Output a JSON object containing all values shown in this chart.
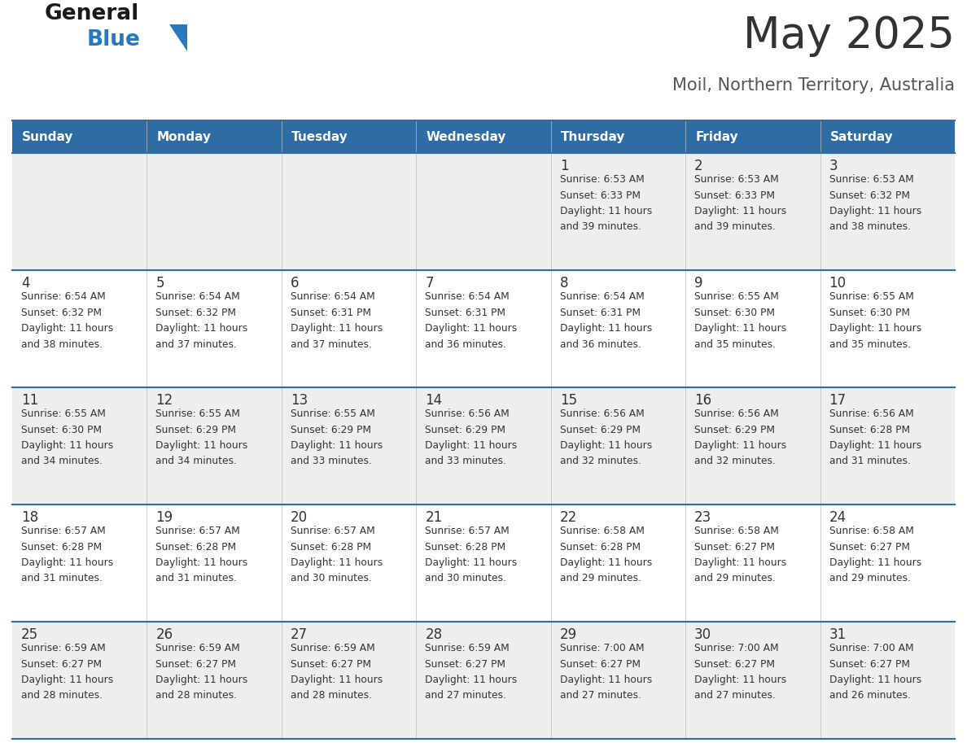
{
  "title": "May 2025",
  "subtitle": "Moil, Northern Territory, Australia",
  "days_of_week": [
    "Sunday",
    "Monday",
    "Tuesday",
    "Wednesday",
    "Thursday",
    "Friday",
    "Saturday"
  ],
  "header_bg": "#2E6DA4",
  "header_text": "#FFFFFF",
  "row_bg_odd": "#EEEEEE",
  "row_bg_even": "#FFFFFF",
  "cell_text": "#333333",
  "border_color": "#2E6DA4",
  "title_color": "#333333",
  "subtitle_color": "#555555",
  "calendar": [
    [
      {
        "day": "",
        "sunrise": "",
        "sunset": "",
        "daylight": ""
      },
      {
        "day": "",
        "sunrise": "",
        "sunset": "",
        "daylight": ""
      },
      {
        "day": "",
        "sunrise": "",
        "sunset": "",
        "daylight": ""
      },
      {
        "day": "",
        "sunrise": "",
        "sunset": "",
        "daylight": ""
      },
      {
        "day": "1",
        "sunrise": "6:53 AM",
        "sunset": "6:33 PM",
        "daylight": "11 hours and 39 minutes."
      },
      {
        "day": "2",
        "sunrise": "6:53 AM",
        "sunset": "6:33 PM",
        "daylight": "11 hours and 39 minutes."
      },
      {
        "day": "3",
        "sunrise": "6:53 AM",
        "sunset": "6:32 PM",
        "daylight": "11 hours and 38 minutes."
      }
    ],
    [
      {
        "day": "4",
        "sunrise": "6:54 AM",
        "sunset": "6:32 PM",
        "daylight": "11 hours and 38 minutes."
      },
      {
        "day": "5",
        "sunrise": "6:54 AM",
        "sunset": "6:32 PM",
        "daylight": "11 hours and 37 minutes."
      },
      {
        "day": "6",
        "sunrise": "6:54 AM",
        "sunset": "6:31 PM",
        "daylight": "11 hours and 37 minutes."
      },
      {
        "day": "7",
        "sunrise": "6:54 AM",
        "sunset": "6:31 PM",
        "daylight": "11 hours and 36 minutes."
      },
      {
        "day": "8",
        "sunrise": "6:54 AM",
        "sunset": "6:31 PM",
        "daylight": "11 hours and 36 minutes."
      },
      {
        "day": "9",
        "sunrise": "6:55 AM",
        "sunset": "6:30 PM",
        "daylight": "11 hours and 35 minutes."
      },
      {
        "day": "10",
        "sunrise": "6:55 AM",
        "sunset": "6:30 PM",
        "daylight": "11 hours and 35 minutes."
      }
    ],
    [
      {
        "day": "11",
        "sunrise": "6:55 AM",
        "sunset": "6:30 PM",
        "daylight": "11 hours and 34 minutes."
      },
      {
        "day": "12",
        "sunrise": "6:55 AM",
        "sunset": "6:29 PM",
        "daylight": "11 hours and 34 minutes."
      },
      {
        "day": "13",
        "sunrise": "6:55 AM",
        "sunset": "6:29 PM",
        "daylight": "11 hours and 33 minutes."
      },
      {
        "day": "14",
        "sunrise": "6:56 AM",
        "sunset": "6:29 PM",
        "daylight": "11 hours and 33 minutes."
      },
      {
        "day": "15",
        "sunrise": "6:56 AM",
        "sunset": "6:29 PM",
        "daylight": "11 hours and 32 minutes."
      },
      {
        "day": "16",
        "sunrise": "6:56 AM",
        "sunset": "6:29 PM",
        "daylight": "11 hours and 32 minutes."
      },
      {
        "day": "17",
        "sunrise": "6:56 AM",
        "sunset": "6:28 PM",
        "daylight": "11 hours and 31 minutes."
      }
    ],
    [
      {
        "day": "18",
        "sunrise": "6:57 AM",
        "sunset": "6:28 PM",
        "daylight": "11 hours and 31 minutes."
      },
      {
        "day": "19",
        "sunrise": "6:57 AM",
        "sunset": "6:28 PM",
        "daylight": "11 hours and 31 minutes."
      },
      {
        "day": "20",
        "sunrise": "6:57 AM",
        "sunset": "6:28 PM",
        "daylight": "11 hours and 30 minutes."
      },
      {
        "day": "21",
        "sunrise": "6:57 AM",
        "sunset": "6:28 PM",
        "daylight": "11 hours and 30 minutes."
      },
      {
        "day": "22",
        "sunrise": "6:58 AM",
        "sunset": "6:28 PM",
        "daylight": "11 hours and 29 minutes."
      },
      {
        "day": "23",
        "sunrise": "6:58 AM",
        "sunset": "6:27 PM",
        "daylight": "11 hours and 29 minutes."
      },
      {
        "day": "24",
        "sunrise": "6:58 AM",
        "sunset": "6:27 PM",
        "daylight": "11 hours and 29 minutes."
      }
    ],
    [
      {
        "day": "25",
        "sunrise": "6:59 AM",
        "sunset": "6:27 PM",
        "daylight": "11 hours and 28 minutes."
      },
      {
        "day": "26",
        "sunrise": "6:59 AM",
        "sunset": "6:27 PM",
        "daylight": "11 hours and 28 minutes."
      },
      {
        "day": "27",
        "sunrise": "6:59 AM",
        "sunset": "6:27 PM",
        "daylight": "11 hours and 28 minutes."
      },
      {
        "day": "28",
        "sunrise": "6:59 AM",
        "sunset": "6:27 PM",
        "daylight": "11 hours and 27 minutes."
      },
      {
        "day": "29",
        "sunrise": "7:00 AM",
        "sunset": "6:27 PM",
        "daylight": "11 hours and 27 minutes."
      },
      {
        "day": "30",
        "sunrise": "7:00 AM",
        "sunset": "6:27 PM",
        "daylight": "11 hours and 27 minutes."
      },
      {
        "day": "31",
        "sunrise": "7:00 AM",
        "sunset": "6:27 PM",
        "daylight": "11 hours and 26 minutes."
      }
    ]
  ],
  "logo_text_general": "General",
  "logo_text_blue": "Blue",
  "logo_color_general": "#1a1a1a",
  "logo_color_blue": "#2878be",
  "logo_triangle_color": "#2878be"
}
